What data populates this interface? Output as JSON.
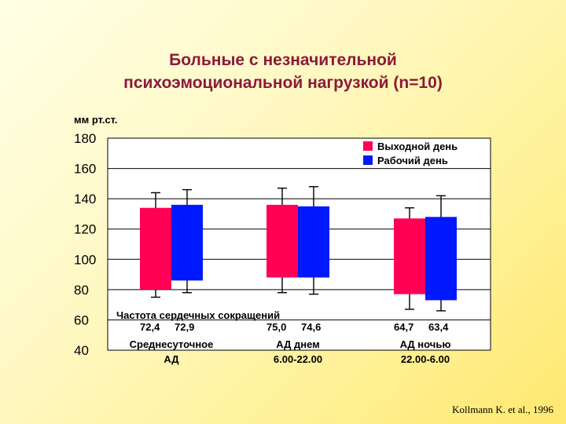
{
  "slide": {
    "title_line1": "Больные с незначительной",
    "title_line2": "психоэмоциональной нагрузкой (n=10)",
    "citation": "Kollmann K. et al., 1996",
    "title_color": "#8b1a3a"
  },
  "chart_data": {
    "type": "bar",
    "y_unit": "мм рт.ст.",
    "ylim": [
      40,
      180
    ],
    "yticks": [
      40,
      60,
      80,
      100,
      120,
      140,
      160,
      180
    ],
    "grid": true,
    "legend_position": "top-right",
    "series": [
      {
        "name": "Выходной день",
        "color": "#ff0055"
      },
      {
        "name": "Рабочий день",
        "color": "#0018ff"
      }
    ],
    "groups": [
      {
        "label_line1": "Среднесуточное",
        "label_line2": "АД",
        "heart_rate": [
          "72,4",
          "72,9"
        ],
        "bars": [
          {
            "series": 0,
            "low": 80,
            "high": 134,
            "err_low": 75,
            "err_high": 144
          },
          {
            "series": 1,
            "low": 86,
            "high": 136,
            "err_low": 78,
            "err_high": 146
          }
        ]
      },
      {
        "label_line1": "АД днем",
        "label_line2": "6.00-22.00",
        "heart_rate": [
          "75,0",
          "74,6"
        ],
        "bars": [
          {
            "series": 0,
            "low": 88,
            "high": 136,
            "err_low": 78,
            "err_high": 147
          },
          {
            "series": 1,
            "low": 88,
            "high": 135,
            "err_low": 77,
            "err_high": 148
          }
        ]
      },
      {
        "label_line1": "АД ночью",
        "label_line2": "22.00-6.00",
        "heart_rate": [
          "64,7",
          "63,4"
        ],
        "bars": [
          {
            "series": 0,
            "low": 77,
            "high": 127,
            "err_low": 67,
            "err_high": 134
          },
          {
            "series": 1,
            "low": 73,
            "high": 128,
            "err_low": 66,
            "err_high": 142
          }
        ]
      }
    ],
    "heart_rate_label": "Частота сердечных сокращений"
  }
}
